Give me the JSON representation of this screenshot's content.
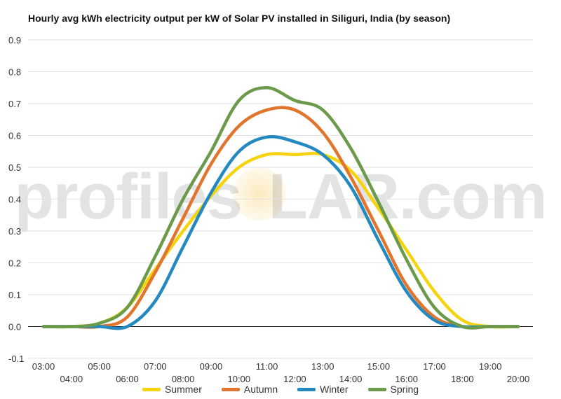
{
  "chart_data": {
    "type": "line",
    "title": "Hourly avg kWh electricity output per kW of Solar PV installed in Siliguri, India (by season)",
    "xlabel": "",
    "ylabel": "",
    "x": [
      "03:00",
      "04:00",
      "05:00",
      "06:00",
      "07:00",
      "08:00",
      "09:00",
      "10:00",
      "11:00",
      "12:00",
      "13:00",
      "14:00",
      "15:00",
      "16:00",
      "17:00",
      "18:00",
      "19:00",
      "20:00"
    ],
    "x_ticks_upper": [
      "03:00",
      "05:00",
      "07:00",
      "09:00",
      "11:00",
      "13:00",
      "15:00",
      "17:00",
      "19:00"
    ],
    "x_ticks_lower": [
      "04:00",
      "06:00",
      "08:00",
      "10:00",
      "12:00",
      "14:00",
      "16:00",
      "18:00",
      "20:00"
    ],
    "y_ticks": [
      "0.9",
      "0.8",
      "0.7",
      "0.6",
      "0.5",
      "0.4",
      "0.3",
      "0.2",
      "0.1",
      "0.0",
      "-0.1"
    ],
    "ylim": [
      -0.1,
      0.9
    ],
    "grid": true,
    "legend_position": "bottom",
    "series": [
      {
        "name": "Summer",
        "color": "#f5d40f",
        "values": [
          0,
          0,
          0.01,
          0.06,
          0.18,
          0.3,
          0.41,
          0.5,
          0.54,
          0.54,
          0.54,
          0.49,
          0.37,
          0.24,
          0.11,
          0.02,
          0,
          0
        ]
      },
      {
        "name": "Autumn",
        "color": "#e2752e",
        "values": [
          0,
          0,
          0,
          0.03,
          0.17,
          0.34,
          0.51,
          0.63,
          0.68,
          0.68,
          0.61,
          0.47,
          0.3,
          0.13,
          0.03,
          0,
          0,
          0
        ]
      },
      {
        "name": "Winter",
        "color": "#2389c0",
        "values": [
          0,
          0,
          0,
          0,
          0.08,
          0.25,
          0.42,
          0.55,
          0.595,
          0.58,
          0.54,
          0.44,
          0.27,
          0.11,
          0.02,
          0,
          0,
          0
        ]
      },
      {
        "name": "Spring",
        "color": "#6b9a4a",
        "values": [
          0,
          0,
          0.01,
          0.06,
          0.22,
          0.4,
          0.55,
          0.71,
          0.75,
          0.71,
          0.68,
          0.56,
          0.39,
          0.21,
          0.06,
          0,
          0,
          0
        ]
      }
    ]
  },
  "watermark": {
    "part1": "profile",
    "part2": "s",
    "part3": "LAR.com"
  }
}
